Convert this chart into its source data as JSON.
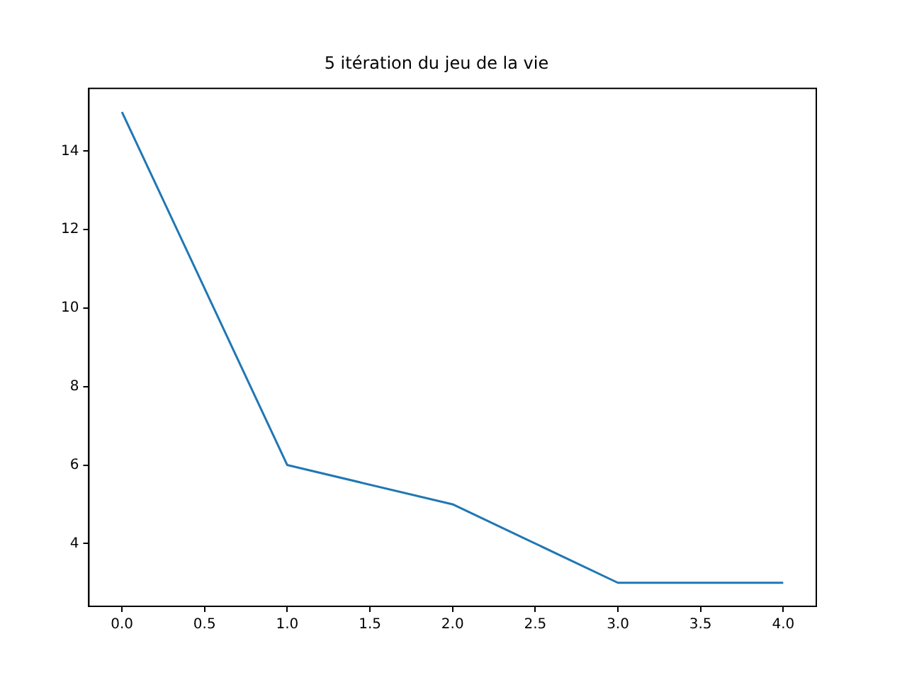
{
  "chart_data": {
    "type": "line",
    "title": "5 itération du jeu de la vie",
    "x": [
      0,
      1,
      2,
      3,
      4
    ],
    "series": [
      {
        "color": "#1f77b4",
        "values": [
          15,
          6,
          5,
          3,
          3
        ]
      }
    ],
    "xlim": [
      -0.2,
      4.2
    ],
    "xticks": [
      {
        "value": 0,
        "label": "0.0"
      },
      {
        "value": 0.5,
        "label": "0.5"
      },
      {
        "value": 1,
        "label": "1.0"
      },
      {
        "value": 1.5,
        "label": "1.5"
      },
      {
        "value": 2,
        "label": "2.0"
      },
      {
        "value": 2.5,
        "label": "2.5"
      },
      {
        "value": 3,
        "label": "3.0"
      },
      {
        "value": 3.5,
        "label": "3.5"
      },
      {
        "value": 4,
        "label": "4.0"
      }
    ],
    "ylim": [
      2.4,
      15.6
    ],
    "yticks": [
      4,
      6,
      8,
      10,
      12,
      14
    ],
    "grid": false,
    "legend": false,
    "marker": "none",
    "line_style": "solid"
  }
}
